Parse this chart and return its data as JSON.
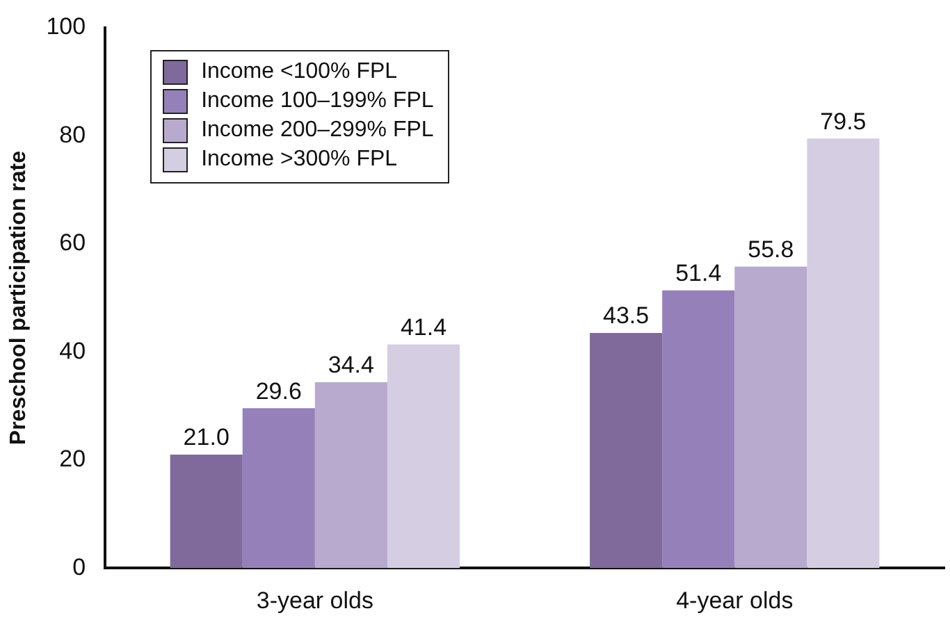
{
  "chart_data": {
    "type": "bar",
    "ylabel": "Preschool participation rate",
    "categories": [
      "3-year olds",
      "4-year olds"
    ],
    "series": [
      {
        "name": "Income <100% FPL",
        "color": "#7f6a9b",
        "values": [
          21.0,
          43.5
        ],
        "value_labels": [
          "21.0",
          "43.5"
        ]
      },
      {
        "name": "Income 100–199% FPL",
        "color": "#9580b9",
        "values": [
          29.6,
          51.4
        ],
        "value_labels": [
          "29.6",
          "51.4"
        ]
      },
      {
        "name": "Income 200–299% FPL",
        "color": "#b8aacf",
        "values": [
          34.4,
          55.8
        ],
        "value_labels": [
          "34.4",
          "55.8"
        ]
      },
      {
        "name": "Income >300% FPL",
        "color": "#d5cde2",
        "values": [
          41.4,
          79.5
        ],
        "value_labels": [
          "41.4",
          "79.5"
        ]
      }
    ],
    "ylim": [
      0,
      100
    ],
    "yticks": [
      0,
      20,
      40,
      60,
      80,
      100
    ],
    "grid": false,
    "legend": "top left"
  }
}
